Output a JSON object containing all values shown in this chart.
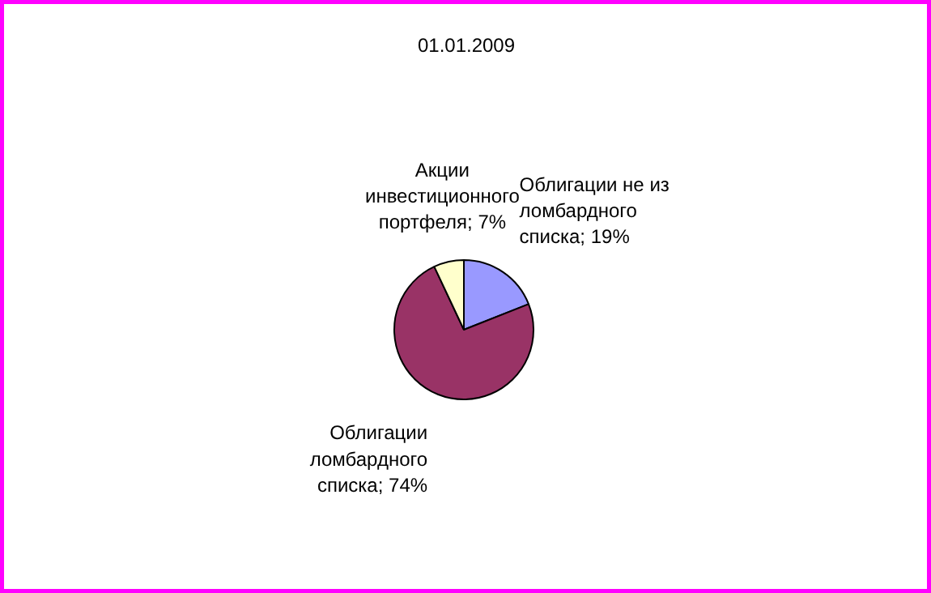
{
  "chart_data": {
    "type": "pie",
    "title": "01.01.2009",
    "categories": [
      "Облигации не из ломбардного списка",
      "Облигации ломбардного списка",
      "Акции инвестиционного портфеля"
    ],
    "values": [
      19,
      74,
      7
    ],
    "colors": [
      "#9999ff",
      "#993366",
      "#ffffcc"
    ],
    "value_labels": [
      "19%",
      "74%",
      "7%"
    ]
  }
}
